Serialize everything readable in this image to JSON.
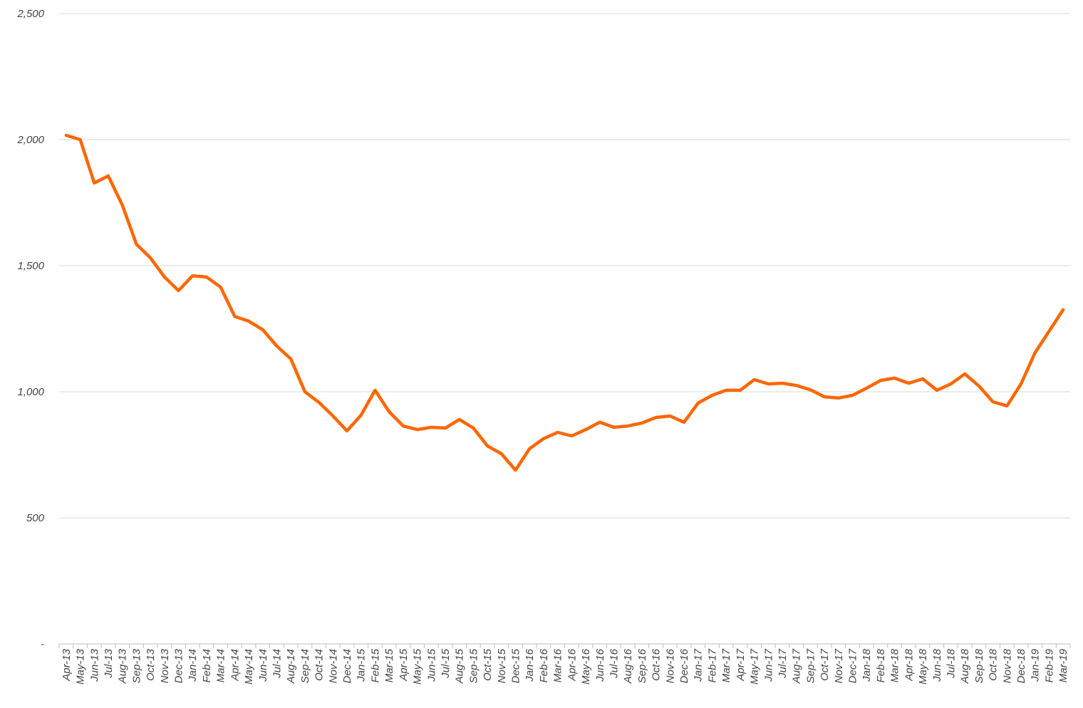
{
  "chart_data": {
    "type": "line",
    "title": "",
    "xlabel": "",
    "ylabel": "",
    "ylim": [
      0,
      2500
    ],
    "yticks": [
      0,
      500,
      1000,
      1500,
      2000,
      2500
    ],
    "ytick_labels": [
      "-",
      "500",
      "1,000",
      "1,500",
      "2,000",
      "2,500"
    ],
    "grid": "horizontal",
    "legend": "none",
    "line_color": "#FF6600",
    "categories": [
      "Apr-13",
      "May-13",
      "Jun-13",
      "Jul-13",
      "Aug-13",
      "Sep-13",
      "Oct-13",
      "Nov-13",
      "Dec-13",
      "Jan-14",
      "Feb-14",
      "Mar-14",
      "Apr-14",
      "May-14",
      "Jun-14",
      "Jul-14",
      "Aug-14",
      "Sep-14",
      "Oct-14",
      "Nov-14",
      "Dec-14",
      "Jan-15",
      "Feb-15",
      "Mar-15",
      "Apr-15",
      "May-15",
      "Jun-15",
      "Jul-15",
      "Aug-15",
      "Sep-15",
      "Oct-15",
      "Nov-15",
      "Dec-15",
      "Jan-16",
      "Feb-16",
      "Mar-16",
      "Apr-16",
      "May-16",
      "Jun-16",
      "Jul-16",
      "Aug-16",
      "Sep-16",
      "Oct-16",
      "Nov-16",
      "Dec-16",
      "Jan-17",
      "Feb-17",
      "Mar-17",
      "Apr-17",
      "May-17",
      "Jun-17",
      "Jul-17",
      "Aug-17",
      "Sep-17",
      "Oct-17",
      "Nov-17",
      "Dec-17",
      "Jan-18",
      "Feb-18",
      "Mar-18",
      "Apr-18",
      "May-18",
      "Jun-18",
      "Jul-18",
      "Aug-18",
      "Sep-18",
      "Oct-18",
      "Nov-18",
      "Dec-18",
      "Jan-19",
      "Feb-19",
      "Mar-19"
    ],
    "series": [
      {
        "values": [
          2017,
          2000,
          1828,
          1856,
          1740,
          1585,
          1531,
          1455,
          1401,
          1460,
          1455,
          1415,
          1299,
          1280,
          1246,
          1181,
          1130,
          1000,
          958,
          904,
          845,
          907,
          1006,
          921,
          864,
          850,
          859,
          856,
          890,
          856,
          785,
          754,
          689,
          774,
          814,
          839,
          825,
          850,
          879,
          859,
          864,
          876,
          898,
          904,
          879,
          955,
          986,
          1006,
          1006,
          1048,
          1031,
          1034,
          1025,
          1008,
          980,
          975,
          986,
          1014,
          1045,
          1054,
          1034,
          1051,
          1006,
          1031,
          1071,
          1023,
          960,
          944,
          1031,
          1155,
          1240,
          1325
        ]
      }
    ]
  }
}
